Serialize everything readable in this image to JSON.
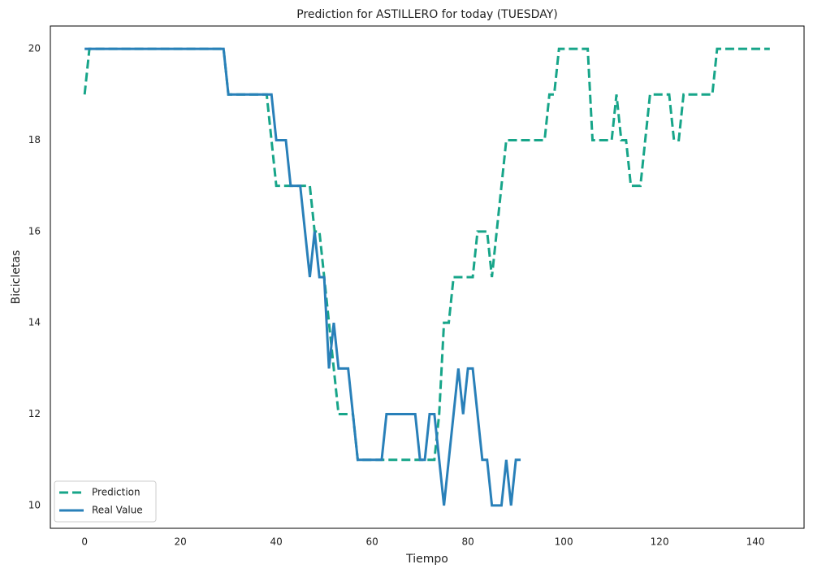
{
  "chart_data": {
    "type": "line",
    "title": "Prediction for ASTILLERO for today (TUESDAY)",
    "x_label": "Tiempo",
    "y_label": "Bicicletas",
    "xlim": [
      -7.15,
      150.15
    ],
    "ylim": [
      9.5,
      20.5
    ],
    "xticks": [
      0,
      20,
      40,
      60,
      80,
      100,
      120,
      140
    ],
    "yticks": [
      10,
      12,
      14,
      16,
      18,
      20
    ],
    "grid": false,
    "legend": "lower left",
    "series": [
      {
        "name": "Prediction",
        "color": "#17a589",
        "dash": true,
        "x": [
          0,
          1,
          2,
          3,
          4,
          5,
          6,
          7,
          8,
          9,
          10,
          11,
          12,
          13,
          14,
          15,
          16,
          17,
          18,
          19,
          20,
          21,
          22,
          23,
          24,
          25,
          26,
          27,
          28,
          29,
          30,
          31,
          32,
          33,
          34,
          35,
          36,
          37,
          38,
          39,
          40,
          41,
          42,
          43,
          44,
          45,
          46,
          47,
          48,
          49,
          50,
          51,
          52,
          53,
          54,
          55,
          56,
          57,
          58,
          59,
          60,
          61,
          62,
          63,
          64,
          65,
          66,
          67,
          68,
          69,
          70,
          71,
          72,
          73,
          74,
          75,
          76,
          77,
          78,
          79,
          80,
          81,
          82,
          83,
          84,
          85,
          86,
          87,
          88,
          89,
          90,
          91,
          92,
          93,
          94,
          95,
          96,
          97,
          98,
          99,
          100,
          101,
          102,
          103,
          104,
          105,
          106,
          107,
          108,
          109,
          110,
          111,
          112,
          113,
          114,
          115,
          116,
          117,
          118,
          119,
          120,
          121,
          122,
          123,
          124,
          125,
          126,
          127,
          128,
          129,
          130,
          131,
          132,
          133,
          134,
          135,
          136,
          137,
          138,
          139,
          140,
          141,
          142,
          143
        ],
        "values": [
          19,
          20,
          20,
          20,
          20,
          20,
          20,
          20,
          20,
          20,
          20,
          20,
          20,
          20,
          20,
          20,
          20,
          20,
          20,
          20,
          20,
          20,
          20,
          20,
          20,
          20,
          20,
          20,
          20,
          20,
          19,
          19,
          19,
          19,
          19,
          19,
          19,
          19,
          19,
          18,
          17,
          17,
          17,
          17,
          17,
          17,
          17,
          17,
          16,
          16,
          15,
          14,
          13,
          12,
          12,
          12,
          12,
          11,
          11,
          11,
          11,
          11,
          11,
          11,
          11,
          11,
          11,
          11,
          11,
          11,
          11,
          11,
          11,
          11,
          12,
          14,
          14,
          15,
          15,
          15,
          15,
          15,
          16,
          16,
          16,
          15,
          16,
          17,
          18,
          18,
          18,
          18,
          18,
          18,
          18,
          18,
          18,
          19,
          19,
          20,
          20,
          20,
          20,
          20,
          20,
          20,
          18,
          18,
          18,
          18,
          18,
          19,
          18,
          18,
          17,
          17,
          17,
          18,
          19,
          19,
          19,
          19,
          19,
          18,
          18,
          19,
          19,
          19,
          19,
          19,
          19,
          19,
          20,
          20,
          20,
          20,
          20,
          20,
          20,
          20,
          20,
          20,
          20,
          20
        ]
      },
      {
        "name": "Real Value",
        "color": "#2980b9",
        "dash": false,
        "x": [
          0,
          1,
          2,
          3,
          4,
          5,
          6,
          7,
          8,
          9,
          10,
          11,
          12,
          13,
          14,
          15,
          16,
          17,
          18,
          19,
          20,
          21,
          22,
          23,
          24,
          25,
          26,
          27,
          28,
          29,
          30,
          31,
          32,
          33,
          34,
          35,
          36,
          37,
          38,
          39,
          40,
          41,
          42,
          43,
          44,
          45,
          46,
          47,
          48,
          49,
          50,
          51,
          52,
          53,
          54,
          55,
          56,
          57,
          58,
          59,
          60,
          61,
          62,
          63,
          64,
          65,
          66,
          67,
          68,
          69,
          70,
          71,
          72,
          73,
          74,
          75,
          76,
          77,
          78,
          79,
          80,
          81,
          82,
          83,
          84,
          85,
          86,
          87,
          88,
          89,
          90,
          91
        ],
        "values": [
          20,
          20,
          20,
          20,
          20,
          20,
          20,
          20,
          20,
          20,
          20,
          20,
          20,
          20,
          20,
          20,
          20,
          20,
          20,
          20,
          20,
          20,
          20,
          20,
          20,
          20,
          20,
          20,
          20,
          20,
          19,
          19,
          19,
          19,
          19,
          19,
          19,
          19,
          19,
          19,
          18,
          18,
          18,
          17,
          17,
          17,
          16,
          15,
          16,
          15,
          15,
          13,
          14,
          13,
          13,
          13,
          12,
          11,
          11,
          11,
          11,
          11,
          11,
          12,
          12,
          12,
          12,
          12,
          12,
          12,
          11,
          11,
          12,
          12,
          11,
          10,
          11,
          12,
          13,
          12,
          13,
          13,
          12,
          11,
          11,
          10,
          10,
          10,
          11,
          10,
          11,
          11
        ]
      }
    ]
  }
}
